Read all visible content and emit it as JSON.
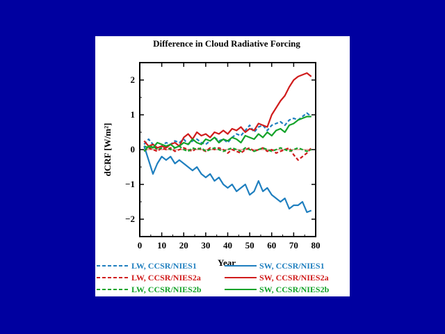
{
  "slide": {
    "background": "#0000a0"
  },
  "chart_data": {
    "type": "line",
    "title": "Difference in Cloud Radiative Forcing",
    "xlabel": "Year",
    "ylabel": "dCRF [W/m²]",
    "xlim": [
      0,
      80
    ],
    "ylim": [
      -2.5,
      2.5
    ],
    "xticks": [
      0,
      10,
      20,
      30,
      40,
      50,
      60,
      70,
      80
    ],
    "yticks": [
      2,
      1,
      0,
      -1,
      -2
    ],
    "xtick_labels": [
      "0",
      "10",
      "20",
      "30",
      "40",
      "50",
      "60",
      "70",
      "80"
    ],
    "ytick_labels": [
      "2",
      "1",
      "0",
      "−1",
      "−2"
    ],
    "grid": false,
    "zero_line": true,
    "legend_position": "bottom",
    "series": [
      {
        "name": "LW, CCSR/NIES1",
        "color": "#1f7fbf",
        "dash": true,
        "x": [
          2,
          4,
          6,
          8,
          10,
          12,
          14,
          16,
          18,
          20,
          22,
          24,
          26,
          28,
          30,
          32,
          34,
          36,
          38,
          40,
          42,
          44,
          46,
          48,
          50,
          52,
          54,
          56,
          58,
          60,
          62,
          64,
          66,
          68,
          70,
          72,
          74,
          76,
          78
        ],
        "y": [
          0.15,
          0.3,
          0.15,
          0.05,
          0.1,
          0.2,
          0.15,
          0.25,
          0.2,
          0.3,
          0.15,
          0.25,
          0.3,
          0.2,
          0.15,
          0.25,
          0.35,
          0.25,
          0.3,
          0.2,
          0.35,
          0.45,
          0.4,
          0.55,
          0.7,
          0.5,
          0.65,
          0.7,
          0.55,
          0.7,
          0.75,
          0.8,
          0.7,
          0.85,
          0.9,
          0.85,
          0.95,
          1.05,
          0.95
        ]
      },
      {
        "name": "LW, CCSR/NIES2a",
        "color": "#d01c1c",
        "dash": true,
        "x": [
          2,
          4,
          6,
          8,
          10,
          12,
          14,
          16,
          18,
          20,
          22,
          24,
          26,
          28,
          30,
          32,
          34,
          36,
          38,
          40,
          42,
          44,
          46,
          48,
          50,
          52,
          54,
          56,
          58,
          60,
          62,
          64,
          66,
          68,
          70,
          72,
          74,
          76,
          78
        ],
        "y": [
          -0.05,
          0.05,
          0.0,
          -0.05,
          0.05,
          0.0,
          0.05,
          -0.05,
          0.0,
          0.05,
          0.0,
          -0.05,
          0.05,
          0.0,
          -0.05,
          0.05,
          0.0,
          0.05,
          0.0,
          -0.1,
          0.0,
          -0.05,
          -0.1,
          0.0,
          0.05,
          -0.05,
          0.0,
          0.05,
          -0.05,
          0.0,
          -0.1,
          -0.05,
          0.0,
          0.05,
          -0.15,
          -0.3,
          -0.2,
          -0.1,
          0.05
        ]
      },
      {
        "name": "LW, CCSR/NIES2b",
        "color": "#15a32a",
        "dash": true,
        "x": [
          2,
          4,
          6,
          8,
          10,
          12,
          14,
          16,
          18,
          20,
          22,
          24,
          26,
          28,
          30,
          32,
          34,
          36,
          38,
          40,
          42,
          44,
          46,
          48,
          50,
          52,
          54,
          56,
          58,
          60,
          62,
          64,
          66,
          68,
          70,
          72,
          74,
          76,
          78
        ],
        "y": [
          0.1,
          0.05,
          0.1,
          0.0,
          0.05,
          0.1,
          0.0,
          0.05,
          0.1,
          0.0,
          -0.05,
          0.05,
          0.0,
          0.05,
          -0.05,
          0.0,
          0.05,
          0.0,
          -0.05,
          0.0,
          0.05,
          0.0,
          -0.05,
          0.05,
          0.0,
          -0.05,
          0.0,
          0.05,
          0.0,
          -0.05,
          0.0,
          0.05,
          0.0,
          -0.05,
          0.0,
          0.05,
          0.0,
          -0.05,
          0.0
        ]
      },
      {
        "name": "SW, CCSR/NIES1",
        "color": "#1f7fbf",
        "dash": false,
        "x": [
          2,
          4,
          6,
          8,
          10,
          12,
          14,
          16,
          18,
          20,
          22,
          24,
          26,
          28,
          30,
          32,
          34,
          36,
          38,
          40,
          42,
          44,
          46,
          48,
          50,
          52,
          54,
          56,
          58,
          60,
          62,
          64,
          66,
          68,
          70,
          72,
          74,
          76,
          78
        ],
        "y": [
          0.1,
          -0.3,
          -0.7,
          -0.4,
          -0.2,
          -0.3,
          -0.2,
          -0.4,
          -0.3,
          -0.4,
          -0.5,
          -0.6,
          -0.5,
          -0.7,
          -0.8,
          -0.7,
          -0.9,
          -0.8,
          -1.0,
          -1.1,
          -1.0,
          -1.2,
          -1.1,
          -1.0,
          -1.3,
          -1.2,
          -0.9,
          -1.2,
          -1.1,
          -1.3,
          -1.4,
          -1.5,
          -1.4,
          -1.7,
          -1.6,
          -1.6,
          -1.5,
          -1.8,
          -1.75
        ]
      },
      {
        "name": "SW, CCSR/NIES2a",
        "color": "#d01c1c",
        "dash": false,
        "x": [
          2,
          4,
          6,
          8,
          10,
          12,
          14,
          16,
          18,
          20,
          22,
          24,
          26,
          28,
          30,
          32,
          34,
          36,
          38,
          40,
          42,
          44,
          46,
          48,
          50,
          52,
          54,
          56,
          58,
          60,
          62,
          64,
          66,
          68,
          70,
          72,
          74,
          76,
          78
        ],
        "y": [
          0.25,
          0.1,
          0.15,
          0.05,
          0.1,
          0.05,
          0.15,
          0.2,
          0.1,
          0.35,
          0.45,
          0.3,
          0.5,
          0.4,
          0.45,
          0.35,
          0.5,
          0.45,
          0.55,
          0.45,
          0.6,
          0.55,
          0.65,
          0.5,
          0.6,
          0.55,
          0.75,
          0.7,
          0.65,
          1.0,
          1.2,
          1.4,
          1.55,
          1.8,
          2.0,
          2.1,
          2.15,
          2.2,
          2.1
        ]
      },
      {
        "name": "SW, CCSR/NIES2b",
        "color": "#15a32a",
        "dash": false,
        "x": [
          2,
          4,
          6,
          8,
          10,
          12,
          14,
          16,
          18,
          20,
          22,
          24,
          26,
          28,
          30,
          32,
          34,
          36,
          38,
          40,
          42,
          44,
          46,
          48,
          50,
          52,
          54,
          56,
          58,
          60,
          62,
          64,
          66,
          68,
          70,
          72,
          74,
          76,
          78
        ],
        "y": [
          -0.05,
          0.1,
          0.05,
          0.2,
          0.15,
          0.1,
          0.15,
          0.05,
          0.1,
          0.2,
          0.15,
          0.3,
          0.2,
          0.15,
          0.3,
          0.25,
          0.35,
          0.2,
          0.3,
          0.25,
          0.35,
          0.3,
          0.2,
          0.4,
          0.35,
          0.3,
          0.45,
          0.35,
          0.5,
          0.4,
          0.55,
          0.6,
          0.5,
          0.7,
          0.75,
          0.85,
          0.9,
          0.95,
          0.95
        ]
      }
    ]
  }
}
